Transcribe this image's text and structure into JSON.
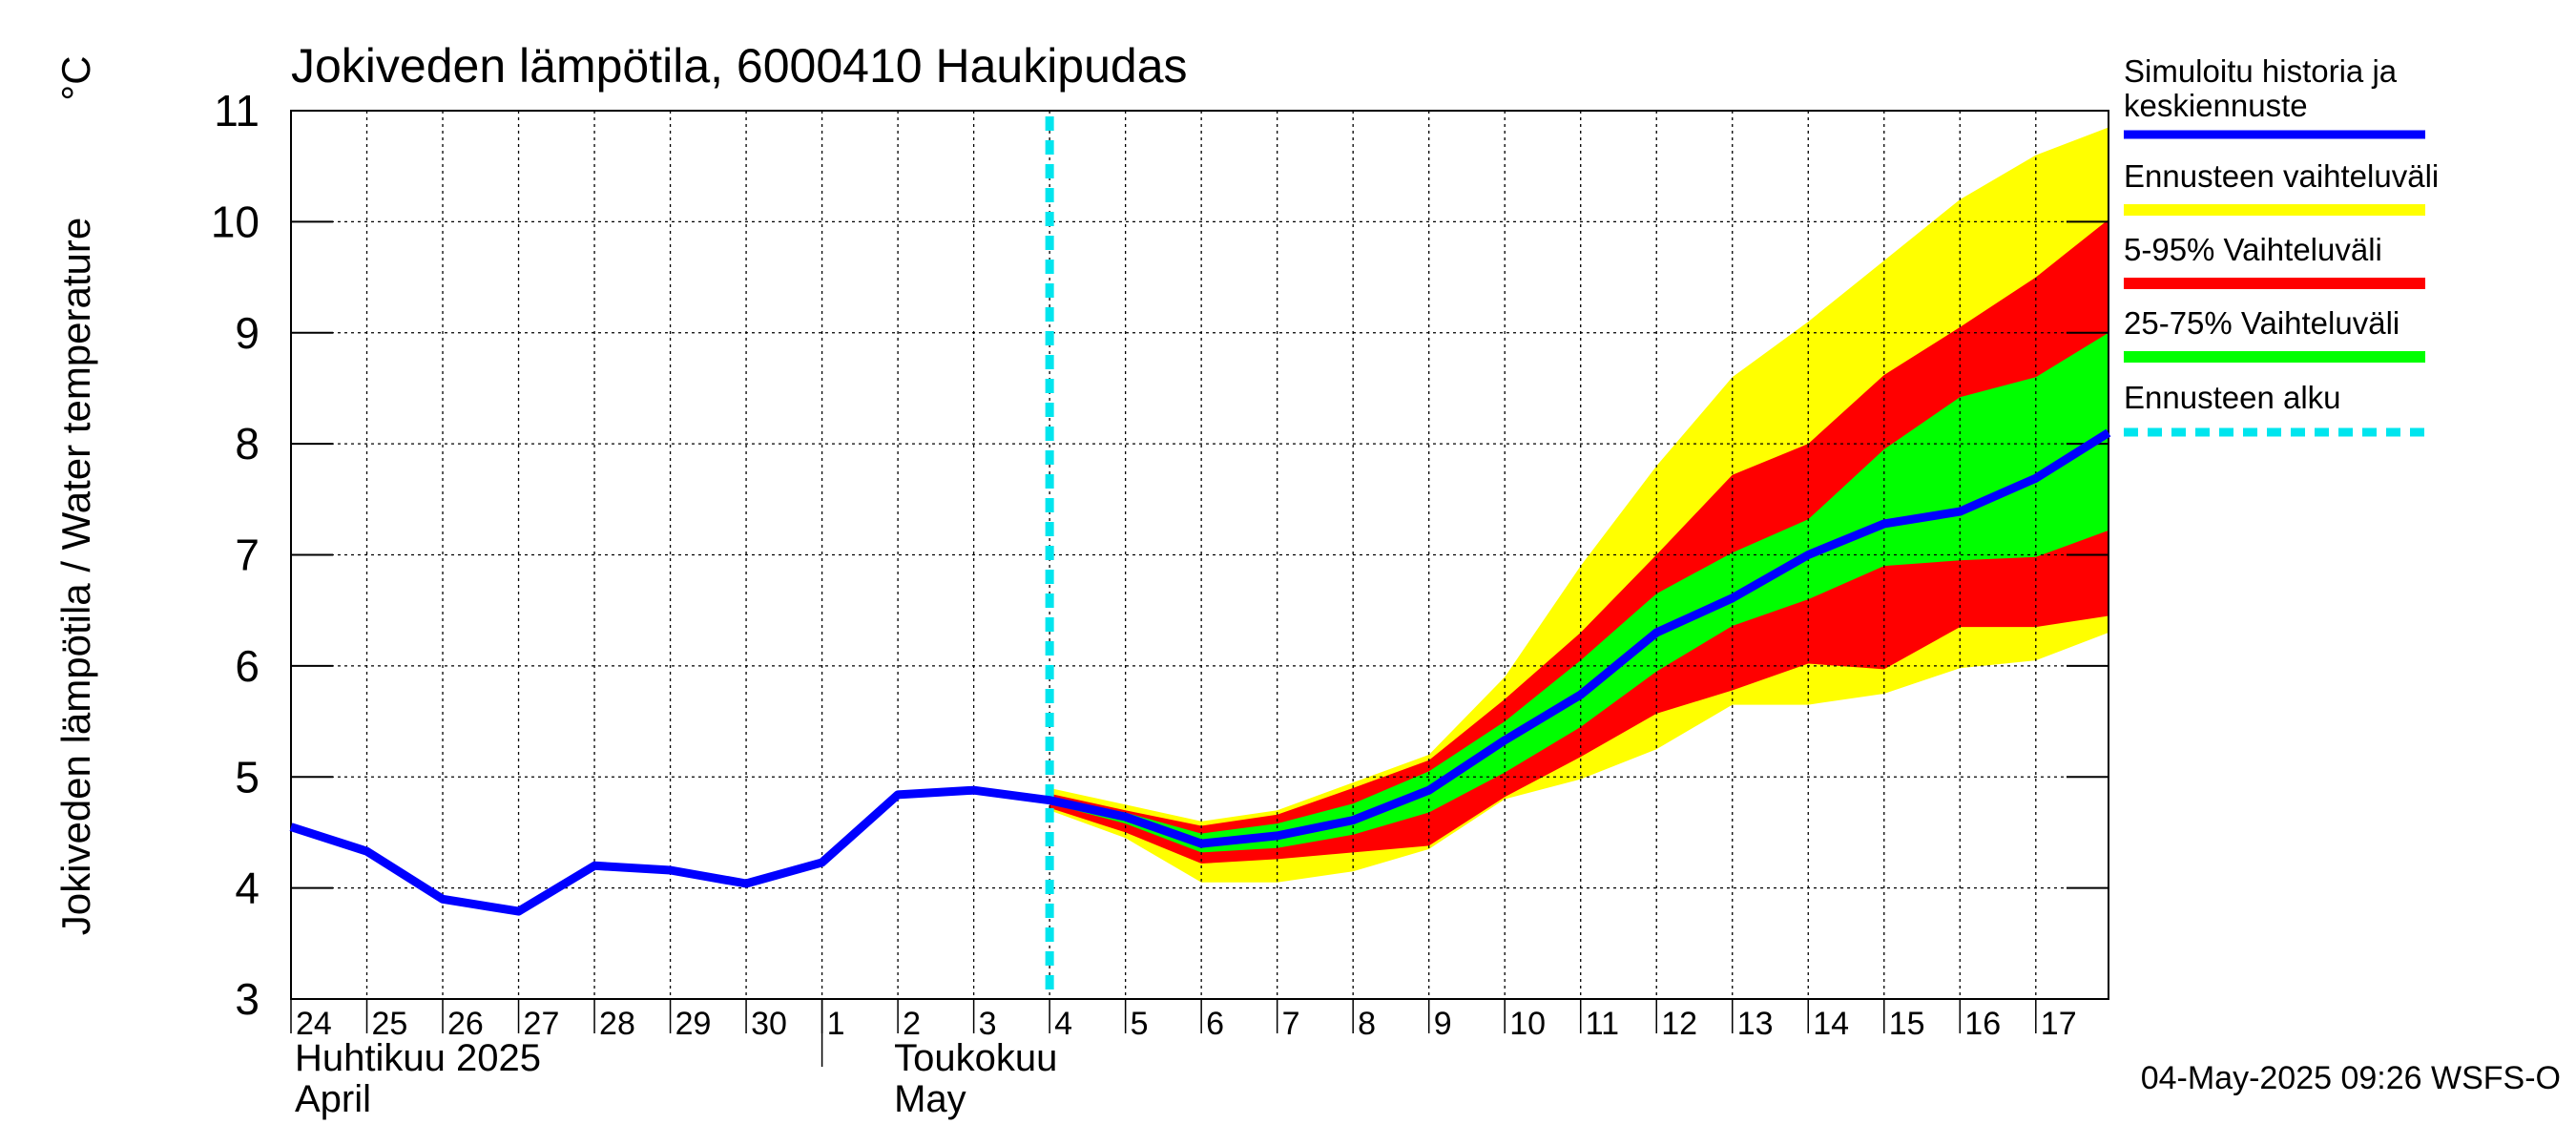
{
  "chart_data": {
    "type": "line",
    "title": "Jokiveden lämpötila, 6000410 Haukipudas",
    "ylabel": "Jokiveden lämpötila / Water temperature",
    "yunit": "°C",
    "ylim": [
      3,
      11
    ],
    "yticks": [
      3,
      4,
      5,
      6,
      7,
      8,
      9,
      10,
      11
    ],
    "xlim": [
      "2025-04-24",
      "2025-05-17T23:00"
    ],
    "grid": true,
    "x_ticks": [
      {
        "date": "2025-04-24",
        "label": "24"
      },
      {
        "date": "2025-04-25",
        "label": "25"
      },
      {
        "date": "2025-04-26",
        "label": "26"
      },
      {
        "date": "2025-04-27",
        "label": "27"
      },
      {
        "date": "2025-04-28",
        "label": "28"
      },
      {
        "date": "2025-04-29",
        "label": "29"
      },
      {
        "date": "2025-04-30",
        "label": "30"
      },
      {
        "date": "2025-05-01",
        "label": "1"
      },
      {
        "date": "2025-05-02",
        "label": "2"
      },
      {
        "date": "2025-05-03",
        "label": "3"
      },
      {
        "date": "2025-05-04",
        "label": "4"
      },
      {
        "date": "2025-05-05",
        "label": "5"
      },
      {
        "date": "2025-05-06",
        "label": "6"
      },
      {
        "date": "2025-05-07",
        "label": "7"
      },
      {
        "date": "2025-05-08",
        "label": "8"
      },
      {
        "date": "2025-05-09",
        "label": "9"
      },
      {
        "date": "2025-05-10",
        "label": "10"
      },
      {
        "date": "2025-05-11",
        "label": "11"
      },
      {
        "date": "2025-05-12",
        "label": "12"
      },
      {
        "date": "2025-05-13",
        "label": "13"
      },
      {
        "date": "2025-05-14",
        "label": "14"
      },
      {
        "date": "2025-05-15",
        "label": "15"
      },
      {
        "date": "2025-05-16",
        "label": "16"
      },
      {
        "date": "2025-05-17",
        "label": "17"
      }
    ],
    "month_labels": [
      {
        "date": "2025-04-24",
        "line1": "Huhtikuu  2025",
        "line2": "April"
      },
      {
        "date": "2025-05-02",
        "line1": "Toukokuu",
        "line2": "May"
      }
    ],
    "month_separator": "2025-05-01",
    "forecast_start": "2025-05-04",
    "x": [
      "2025-04-24",
      "2025-04-25",
      "2025-04-26",
      "2025-04-27",
      "2025-04-28",
      "2025-04-29",
      "2025-04-30",
      "2025-05-01",
      "2025-05-02",
      "2025-05-03",
      "2025-05-04",
      "2025-05-05",
      "2025-05-06",
      "2025-05-07",
      "2025-05-08",
      "2025-05-09",
      "2025-05-10",
      "2025-05-11",
      "2025-05-12",
      "2025-05-13",
      "2025-05-14",
      "2025-05-15",
      "2025-05-16",
      "2025-05-17",
      "2025-05-17T23:00"
    ],
    "series": [
      {
        "name": "Simuloitu historia ja keskiennuste",
        "color": "#0000ff",
        "values": [
          4.55,
          4.33,
          3.9,
          3.79,
          4.2,
          4.16,
          4.04,
          4.23,
          4.84,
          4.88,
          4.79,
          4.64,
          4.4,
          4.47,
          4.61,
          4.88,
          5.33,
          5.74,
          6.3,
          6.61,
          7.0,
          7.28,
          7.39,
          7.69,
          8.1
        ]
      }
    ],
    "bands": [
      {
        "name": "Ennusteen vaihteluväli",
        "color": "#ffff00",
        "x": [
          "2025-05-04",
          "2025-05-05",
          "2025-05-06",
          "2025-05-07",
          "2025-05-08",
          "2025-05-09",
          "2025-05-10",
          "2025-05-11",
          "2025-05-12",
          "2025-05-13",
          "2025-05-14",
          "2025-05-15",
          "2025-05-16",
          "2025-05-17",
          "2025-05-17T23:00"
        ],
        "upper": [
          4.9,
          4.75,
          4.6,
          4.7,
          4.95,
          5.2,
          5.9,
          6.9,
          7.8,
          8.6,
          9.1,
          9.65,
          10.2,
          10.6,
          10.85
        ],
        "lower": [
          4.7,
          4.45,
          4.05,
          4.05,
          4.15,
          4.35,
          4.8,
          4.98,
          5.25,
          5.65,
          5.65,
          5.75,
          5.98,
          6.05,
          6.3
        ]
      },
      {
        "name": "5-95% Vaihteluväli",
        "color": "#ff0000",
        "x": [
          "2025-05-04",
          "2025-05-05",
          "2025-05-06",
          "2025-05-07",
          "2025-05-08",
          "2025-05-09",
          "2025-05-10",
          "2025-05-11",
          "2025-05-12",
          "2025-05-13",
          "2025-05-14",
          "2025-05-15",
          "2025-05-16",
          "2025-05-17",
          "2025-05-17T23:00"
        ],
        "upper": [
          4.85,
          4.7,
          4.56,
          4.66,
          4.9,
          5.15,
          5.7,
          6.3,
          7.0,
          7.72,
          8.0,
          8.62,
          9.05,
          9.5,
          10.02
        ],
        "lower": [
          4.72,
          4.5,
          4.22,
          4.26,
          4.32,
          4.38,
          4.82,
          5.18,
          5.57,
          5.78,
          6.02,
          5.97,
          6.35,
          6.35,
          6.45
        ]
      },
      {
        "name": "25-75% Vaihteluväli",
        "color": "#00ff00",
        "x": [
          "2025-05-04",
          "2025-05-05",
          "2025-05-06",
          "2025-05-07",
          "2025-05-08",
          "2025-05-09",
          "2025-05-10",
          "2025-05-11",
          "2025-05-12",
          "2025-05-13",
          "2025-05-14",
          "2025-05-15",
          "2025-05-16",
          "2025-05-17",
          "2025-05-17T23:00"
        ],
        "upper": [
          4.82,
          4.68,
          4.49,
          4.58,
          4.76,
          5.05,
          5.5,
          6.05,
          6.65,
          7.02,
          7.32,
          7.95,
          8.42,
          8.6,
          9.0
        ],
        "lower": [
          4.76,
          4.58,
          4.32,
          4.36,
          4.48,
          4.68,
          5.04,
          5.45,
          5.95,
          6.36,
          6.6,
          6.9,
          6.95,
          6.98,
          7.22
        ]
      }
    ],
    "legend": [
      {
        "label": "Simuloitu historia ja\nkeskiennuste",
        "color": "#0000ff",
        "style": "line"
      },
      {
        "label": "Ennusteen vaihteluväli",
        "color": "#ffff00",
        "style": "band"
      },
      {
        "label": "5-95% Vaihteluväli",
        "color": "#ff0000",
        "style": "band"
      },
      {
        "label": "25-75% Vaihteluväli",
        "color": "#00ff00",
        "style": "band"
      },
      {
        "label": "Ennusteen alku",
        "color": "#00e5ee",
        "style": "dashed"
      }
    ],
    "legend_placement": "right",
    "footer": "04-May-2025 09:26 WSFS-O"
  }
}
